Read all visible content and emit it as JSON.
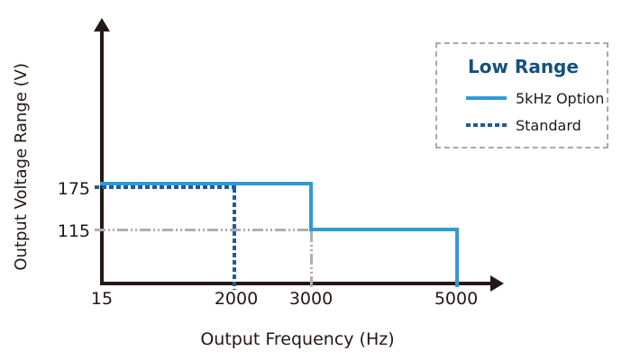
{
  "colors": {
    "text_dark": "#231815",
    "axis": "#231815",
    "blue_solid": "#2E9BD6",
    "blue_dashed": "#1E5C99",
    "legend_title_blue": "#14517E",
    "guide_gray": "#B1AEAE",
    "legend_border_gray": "#A9A9A9"
  },
  "chart_data": {
    "type": "line",
    "subtype": "step",
    "title": "",
    "xlabel": "Output Frequency (Hz)",
    "ylabel": "Output Voltage Range (V)",
    "x_ticks": [
      "15",
      "2000",
      "3000",
      "5000"
    ],
    "y_ticks": [
      "175",
      "115"
    ],
    "xlim": [
      15,
      5500
    ],
    "ylim": [
      0,
      220
    ],
    "grid": false,
    "legend": {
      "position": "top-right",
      "title": "Low Range",
      "entries": [
        {
          "label": "5kHz Option",
          "style": "solid",
          "color": "#2E9BD6"
        },
        {
          "label": "Standard",
          "style": "dashed",
          "color": "#1E5C99"
        }
      ]
    },
    "series": [
      {
        "name": "5kHz Option",
        "style": "solid",
        "color": "#2E9BD6",
        "points_hz_v": [
          [
            15,
            175
          ],
          [
            3000,
            175
          ],
          [
            3000,
            115
          ],
          [
            5000,
            115
          ],
          [
            5000,
            0
          ]
        ]
      },
      {
        "name": "Standard",
        "style": "dashed",
        "color": "#1E5C99",
        "points_hz_v": [
          [
            15,
            175
          ],
          [
            2000,
            175
          ],
          [
            2000,
            0
          ]
        ]
      }
    ],
    "guides": [
      {
        "name": "115V-at-3000Hz-guide",
        "style": "dash-dot-dot",
        "color": "#B1AEAE",
        "points_hz_v": [
          [
            15,
            115
          ],
          [
            3000,
            115
          ],
          [
            3000,
            0
          ]
        ]
      }
    ]
  }
}
